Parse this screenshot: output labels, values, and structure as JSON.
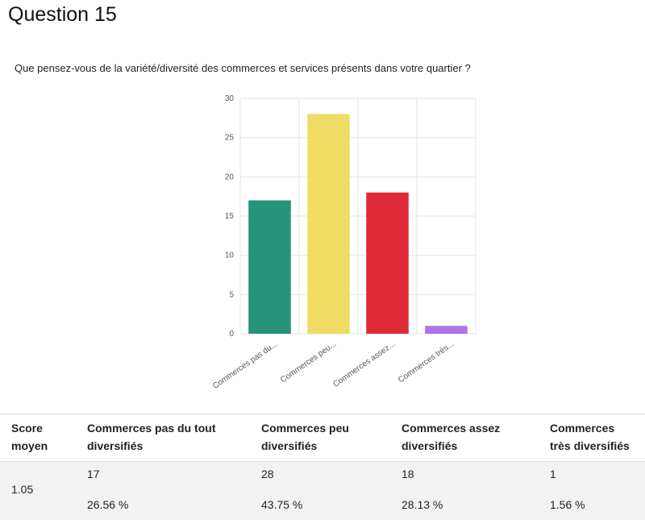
{
  "question": {
    "title": "Question 15",
    "text": "Que pensez-vous de la variété/diversité des commerces et services présents dans votre quartier ?"
  },
  "chart_data": {
    "type": "bar",
    "categories": [
      "Commerces pas du...",
      "Commerces peu...",
      "Commerces assez...",
      "Commerces très..."
    ],
    "values": [
      17,
      28,
      18,
      1
    ],
    "colors": [
      "#259478",
      "#f0dc64",
      "#e02a37",
      "#b074e8"
    ],
    "ylim": [
      0,
      30
    ],
    "yticks": [
      0,
      5,
      10,
      15,
      20,
      25,
      30
    ],
    "grid": true
  },
  "table": {
    "headers": [
      "Score moyen",
      "Commerces pas du tout diversifiés",
      "Commerces peu diversifiés",
      "Commerces assez diversifiés",
      "Commerces très diversifiés"
    ],
    "score": "1.05",
    "cells": [
      {
        "count": "17",
        "percent": "26.56 %"
      },
      {
        "count": "28",
        "percent": "43.75 %"
      },
      {
        "count": "18",
        "percent": "28.13 %"
      },
      {
        "count": "1",
        "percent": "1.56 %"
      }
    ]
  }
}
